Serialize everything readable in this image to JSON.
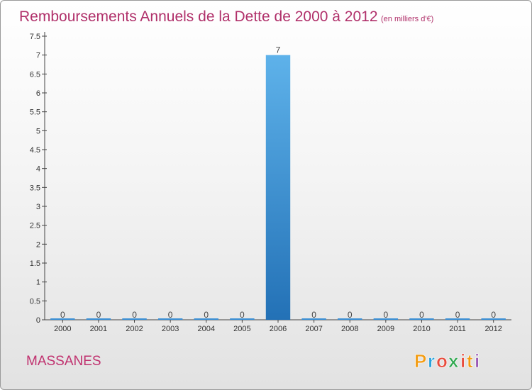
{
  "chart_data": {
    "type": "bar",
    "title": "Remboursements Annuels de la Dette de 2000 à 2012",
    "subtitle": "(en milliers d'€)",
    "categories": [
      "2000",
      "2001",
      "2002",
      "2003",
      "2004",
      "2005",
      "2006",
      "2007",
      "2008",
      "2009",
      "2010",
      "2011",
      "2012"
    ],
    "values": [
      0,
      0,
      0,
      0,
      0,
      0,
      7,
      0,
      0,
      0,
      0,
      0,
      0
    ],
    "value_labels": [
      "0",
      "0",
      "0",
      "0",
      "0",
      "0",
      "7",
      "0",
      "0",
      "0",
      "0",
      "0",
      "0"
    ],
    "ylim": [
      0,
      7.5
    ],
    "yticks": [
      {
        "value": 0,
        "label": "0"
      },
      {
        "value": 0.5,
        "label": "0.5"
      },
      {
        "value": 1,
        "label": "1"
      },
      {
        "value": 1.5,
        "label": "1.5"
      },
      {
        "value": 2,
        "label": "2"
      },
      {
        "value": 2.5,
        "label": "2.5"
      },
      {
        "value": 3,
        "label": "3"
      },
      {
        "value": 3.5,
        "label": "3.5"
      },
      {
        "value": 4,
        "label": "4"
      },
      {
        "value": 4.5,
        "label": "4.5"
      },
      {
        "value": 5,
        "label": "5"
      },
      {
        "value": 5.5,
        "label": "5.5"
      },
      {
        "value": 6,
        "label": "6"
      },
      {
        "value": 6.5,
        "label": "6.5"
      },
      {
        "value": 7,
        "label": "7"
      },
      {
        "value": 7.5,
        "label": "7.5"
      }
    ],
    "xlabel": "",
    "ylabel": "",
    "grid": false,
    "bar_color": "#3a8fd6"
  },
  "commune": "MASSANES",
  "logo": {
    "letters": [
      "P",
      "r",
      "o",
      "x",
      "i",
      "t",
      "i"
    ],
    "colors": [
      "#f39c12",
      "#27a2dc",
      "#e84c3d",
      "#2fa84f",
      "#e84c3d",
      "#f39c12",
      "#9b59b6"
    ]
  }
}
